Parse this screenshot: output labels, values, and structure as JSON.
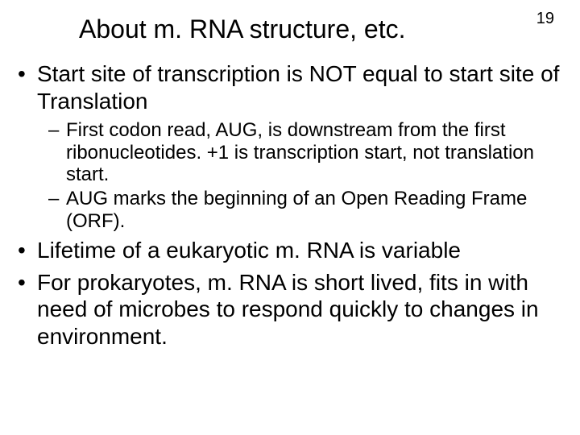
{
  "slide": {
    "title": "About m. RNA structure, etc.",
    "page_number": "19",
    "bullets": {
      "b1": "Start site of transcription is NOT equal to start site of Translation",
      "b1_sub1": "First codon read, AUG, is downstream from the first ribonucleotides. +1 is transcription start, not translation start.",
      "b1_sub2": "AUG marks the beginning of an Open Reading Frame (ORF).",
      "b2": "Lifetime of a eukaryotic m. RNA is variable",
      "b3": "For prokaryotes, m. RNA is short lived, fits in with need of microbes to respond quickly to changes in environment."
    }
  },
  "styling": {
    "background_color": "#ffffff",
    "text_color": "#000000",
    "title_fontsize": 32,
    "level1_fontsize": 28,
    "level2_fontsize": 24,
    "page_number_fontsize": 20,
    "font_family": "Arial"
  }
}
